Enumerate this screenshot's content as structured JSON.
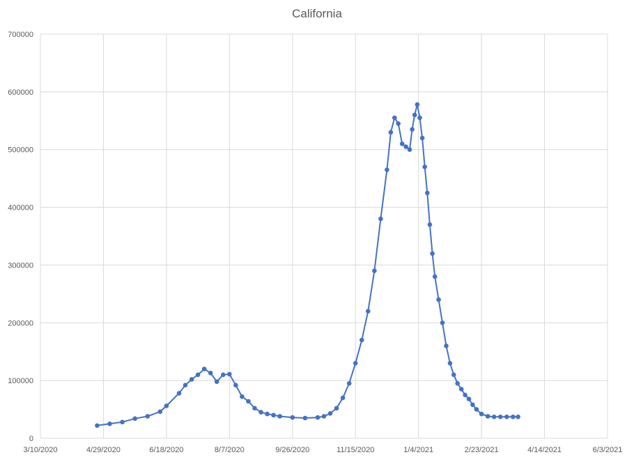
{
  "chart_data": {
    "type": "line",
    "title": "California",
    "xlabel": "",
    "ylabel": "",
    "x_ticks": [
      "3/10/2020",
      "4/29/2020",
      "6/18/2020",
      "8/7/2020",
      "9/26/2020",
      "11/15/2020",
      "1/4/2021",
      "2/23/2021",
      "4/14/2021",
      "6/3/2021"
    ],
    "y_ticks": [
      "0",
      "100000",
      "200000",
      "300000",
      "400000",
      "500000",
      "600000",
      "700000"
    ],
    "xlim": [
      "3/10/2020",
      "6/3/2021"
    ],
    "ylim": [
      0,
      700000
    ],
    "grid": true,
    "legend": "none",
    "colors": {
      "series": "#4472C4",
      "grid": "#d9d9d9",
      "text": "#595959"
    },
    "series": [
      {
        "x": [
          "4/24/2020",
          "5/4/2020",
          "5/14/2020",
          "5/24/2020",
          "6/3/2020",
          "6/13/2020",
          "6/18/2020",
          "6/28/2020",
          "7/3/2020",
          "7/8/2020",
          "7/13/2020",
          "7/18/2020",
          "7/23/2020",
          "7/28/2020",
          "8/2/2020",
          "8/7/2020",
          "8/12/2020",
          "8/17/2020",
          "8/22/2020",
          "8/27/2020",
          "9/1/2020",
          "9/6/2020",
          "9/11/2020",
          "9/16/2020",
          "9/26/2020",
          "10/6/2020",
          "10/16/2020",
          "10/21/2020",
          "10/26/2020",
          "10/31/2020",
          "11/5/2020",
          "11/10/2020",
          "11/15/2020",
          "11/20/2020",
          "11/25/2020",
          "11/30/2020",
          "12/5/2020",
          "12/10/2020",
          "12/13/2020",
          "12/16/2020",
          "12/19/2020",
          "12/22/2020",
          "12/25/2020",
          "12/28/2020",
          "12/30/2020",
          "1/1/2021",
          "1/3/2021",
          "1/5/2021",
          "1/7/2021",
          "1/9/2021",
          "1/11/2021",
          "1/13/2021",
          "1/15/2021",
          "1/17/2021",
          "1/20/2021",
          "1/23/2021",
          "1/26/2021",
          "1/29/2021",
          "2/1/2021",
          "2/4/2021",
          "2/7/2021",
          "2/10/2021",
          "2/13/2021",
          "2/16/2021",
          "2/19/2021",
          "2/23/2021",
          "2/28/2021",
          "3/5/2021",
          "3/10/2021",
          "3/15/2021",
          "3/20/2021",
          "3/24/2021"
        ],
        "values": [
          22000,
          25000,
          28000,
          34000,
          38000,
          46000,
          56000,
          78000,
          92000,
          102000,
          110000,
          120000,
          113000,
          98000,
          110000,
          111000,
          92000,
          72000,
          64000,
          52000,
          45000,
          42000,
          40000,
          38000,
          36000,
          35000,
          36000,
          38000,
          43000,
          52000,
          70000,
          95000,
          130000,
          170000,
          220000,
          290000,
          380000,
          465000,
          530000,
          555000,
          545000,
          510000,
          505000,
          500000,
          535000,
          560000,
          578000,
          555000,
          520000,
          470000,
          425000,
          370000,
          320000,
          280000,
          240000,
          200000,
          160000,
          130000,
          110000,
          95000,
          85000,
          75000,
          68000,
          58000,
          50000,
          42000,
          38000,
          37000,
          37000,
          37000,
          37000,
          37000
        ]
      }
    ]
  }
}
